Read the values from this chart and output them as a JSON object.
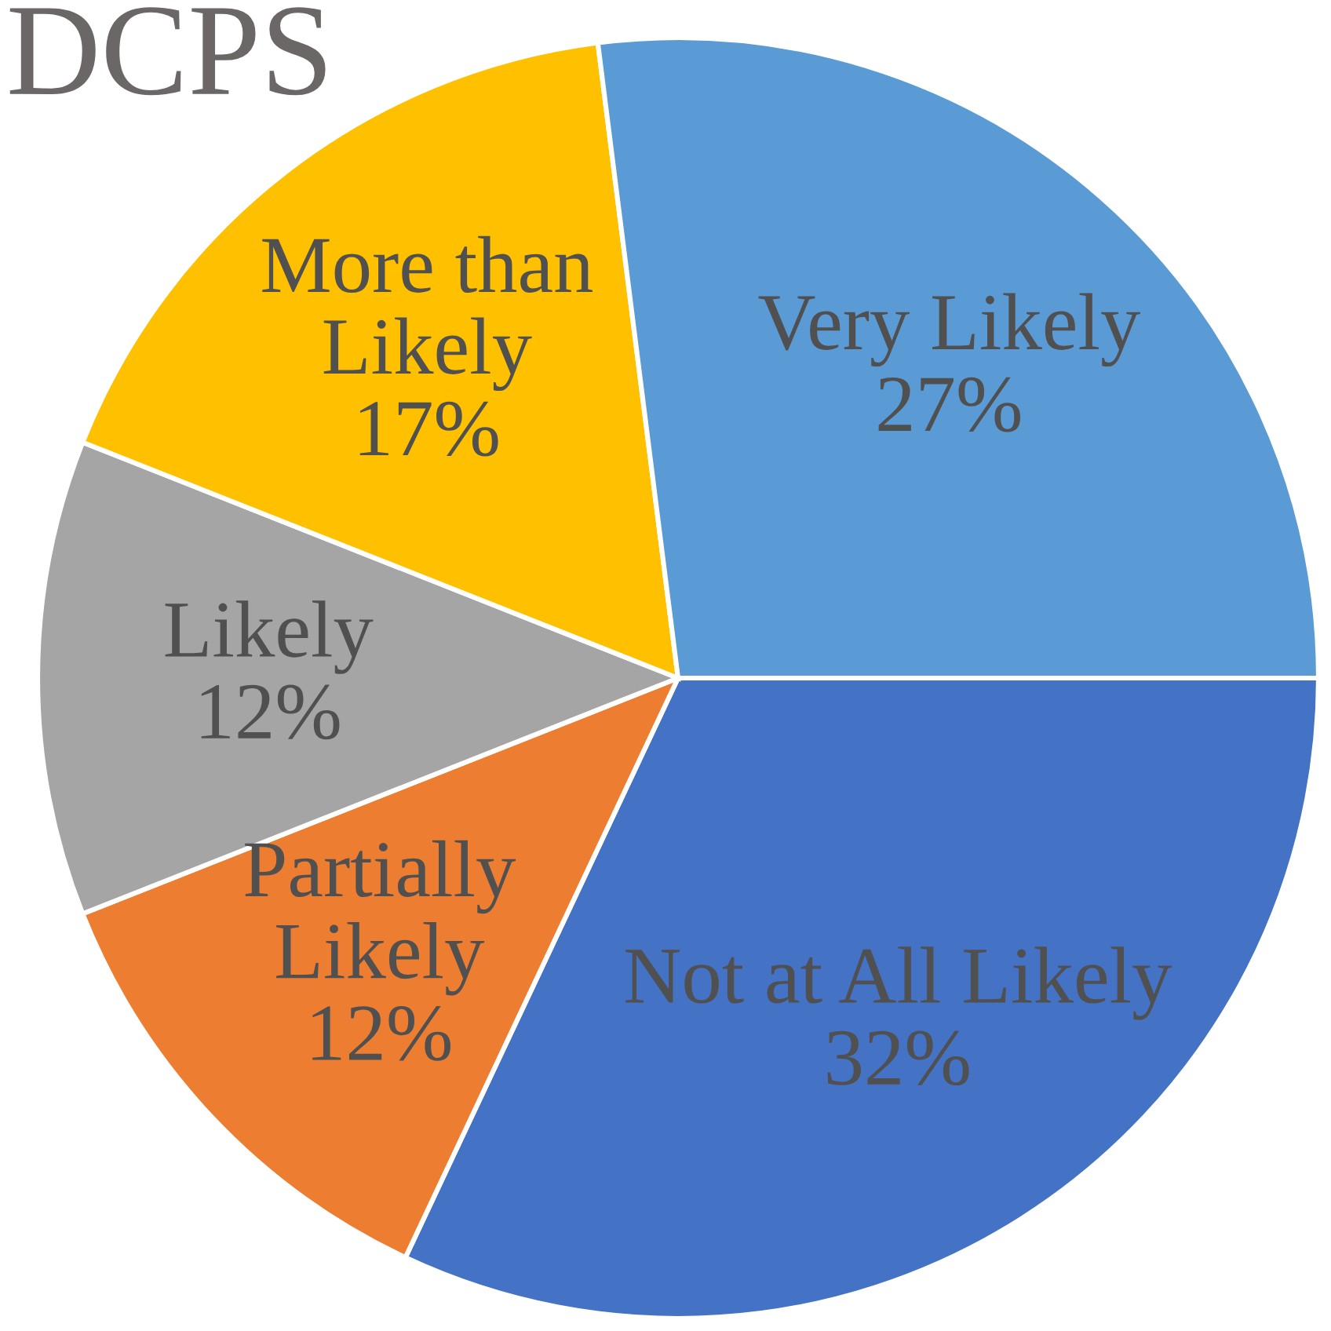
{
  "chart_data": {
    "type": "pie",
    "title": "DCPS",
    "categories": [
      "Not at All Likely",
      "Partially Likely",
      "Likely",
      "More than Likely",
      "Very Likely"
    ],
    "values": [
      32,
      12,
      12,
      17,
      27
    ],
    "value_labels": [
      "32%",
      "12%",
      "12%",
      "17%",
      "27%"
    ],
    "colors": [
      "#4472c4",
      "#ed7d31",
      "#a5a5a5",
      "#ffc000",
      "#5b9bd5"
    ],
    "legend": false
  }
}
